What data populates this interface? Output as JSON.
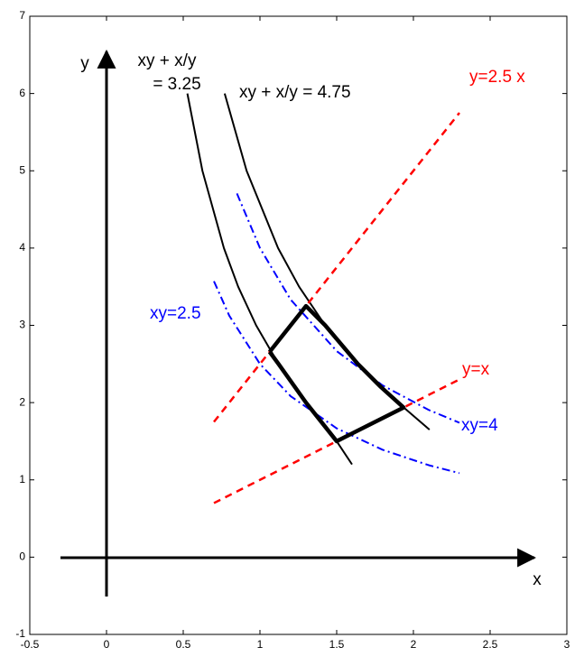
{
  "chart_data": {
    "type": "line",
    "xlim": [
      -0.5,
      3
    ],
    "ylim": [
      -1,
      7
    ],
    "xticks": [
      -0.5,
      0,
      0.5,
      1,
      1.5,
      2,
      2.5,
      3
    ],
    "yticks": [
      -1,
      0,
      1,
      2,
      3,
      4,
      5,
      6,
      7
    ],
    "series": [
      {
        "color": "#000000",
        "style": "solid",
        "width": 2,
        "x": [
          0.527,
          0.625,
          0.765,
          0.858,
          0.975,
          1.121,
          1.3,
          1.42,
          1.5,
          1.6
        ],
        "y": [
          6,
          5,
          4,
          3.5,
          3,
          2.5,
          2,
          1.7,
          1.5,
          1.2
        ]
      },
      {
        "color": "#000000",
        "style": "solid",
        "width": 2,
        "x": [
          0.77,
          0.913,
          1.118,
          1.255,
          1.425,
          1.638,
          1.9,
          2.105
        ],
        "y": [
          6,
          5,
          4,
          3.5,
          3,
          2.5,
          2,
          1.65
        ]
      },
      {
        "color": "#0000ff",
        "style": "dashdot",
        "width": 2,
        "x": [
          0.7,
          0.8,
          1,
          1.2,
          1.5,
          1.8,
          2.1,
          2.3
        ],
        "y": [
          3.571,
          3.125,
          2.5,
          2.083,
          1.667,
          1.389,
          1.19,
          1.087
        ]
      },
      {
        "color": "#0000ff",
        "style": "dashdot",
        "width": 2,
        "x": [
          0.85,
          1,
          1.2,
          1.5,
          1.8,
          2.1,
          2.3
        ],
        "y": [
          4.706,
          4,
          3.333,
          2.667,
          2.222,
          1.905,
          1.739
        ]
      },
      {
        "color": "#ff0000",
        "style": "dashed",
        "width": 2.5,
        "x": [
          0.7,
          2.3
        ],
        "y": [
          1.75,
          5.75
        ]
      },
      {
        "color": "#ff0000",
        "style": "dashed",
        "width": 2.5,
        "x": [
          0.7,
          2.3
        ],
        "y": [
          0.7,
          2.3
        ]
      },
      {
        "color": "#000000",
        "style": "solid",
        "width": 4.5,
        "x": [
          1.063,
          1.3,
          1.425,
          1.638,
          1.789,
          1.936,
          1.5,
          1.42,
          1.3,
          1.121,
          1.063
        ],
        "y": [
          2.657,
          3.25,
          3,
          2.5,
          2.2,
          1.936,
          1.5,
          1.7,
          2,
          2.5,
          2.657
        ]
      }
    ],
    "annotations": [
      {
        "text": "xy + x/y",
        "color": "#000000"
      },
      {
        "text": "= 3.25",
        "color": "#000000"
      },
      {
        "text": "xy + x/y = 4.75",
        "color": "#000000"
      },
      {
        "text": "y=2.5 x",
        "color": "#ff0000"
      },
      {
        "text": "y=x",
        "color": "#ff0000"
      },
      {
        "text": "xy=2.5",
        "color": "#0000ff"
      },
      {
        "text": "xy=4",
        "color": "#0000ff"
      },
      {
        "text": "x",
        "color": "#000000"
      },
      {
        "text": "y",
        "color": "#000000"
      }
    ]
  }
}
